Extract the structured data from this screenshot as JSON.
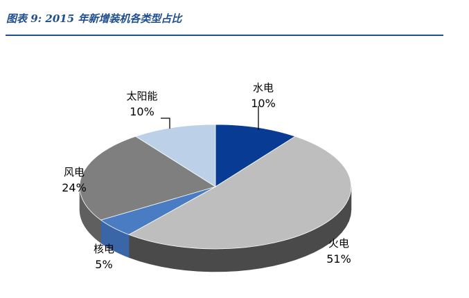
{
  "header": {
    "title": "图表 9:  2015 年新增装机各类型占比"
  },
  "chart_data": {
    "type": "pie",
    "title": "图表 9:  2015 年新增装机各类型占比",
    "style": "3d-exploded-none",
    "start": "12 o'clock, clockwise",
    "slices": [
      {
        "label": "水电",
        "value": 10,
        "display": "10%",
        "color": "#083c94",
        "side_color": "#062a6a"
      },
      {
        "label": "火电",
        "value": 51,
        "display": "51%",
        "color": "#bebebe",
        "side_color": "#4a4a4a"
      },
      {
        "label": "核电",
        "value": 5,
        "display": "5%",
        "color": "#4a7cc4",
        "side_color": "#3a66a8"
      },
      {
        "label": "风电",
        "value": 24,
        "display": "24%",
        "color": "#7f7f7f",
        "side_color": "#5f5f5f"
      },
      {
        "label": "太阳能",
        "value": 10,
        "display": "10%",
        "color": "#bcd1e8",
        "side_color": "#9fb4cc"
      }
    ],
    "label_placement": "outside",
    "legend": "none"
  }
}
